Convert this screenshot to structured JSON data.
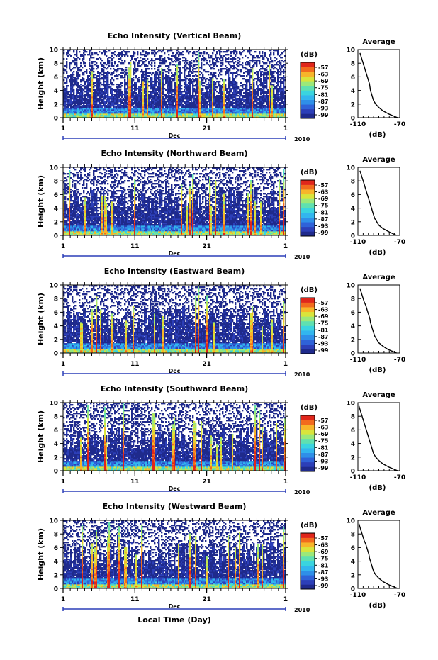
{
  "figure": {
    "xlabel": "Local Time (Day)",
    "year_label": "2010",
    "month_label": "Dec",
    "ylabel": "Height (km)",
    "colorbar_unit": "(dB)",
    "colorbar_ticks": [
      "-57",
      "-63",
      "-69",
      "-75",
      "-81",
      "-87",
      "-93",
      "-99"
    ],
    "avg_title": "Average",
    "avg_xlabel": "(dB)"
  },
  "colors": {
    "colormap": [
      "#1f2a8c",
      "#2c3fb8",
      "#2f62d8",
      "#2f8fe8",
      "#32b6ee",
      "#3ad4df",
      "#5fe0b0",
      "#9be87a",
      "#d9e43c",
      "#f7b52a",
      "#f26a1d",
      "#e0261b"
    ],
    "axis": "#000000",
    "frame_blue": "#2c3fb8"
  },
  "chart_data": [
    {
      "type": "heatmap",
      "title": "Echo Intensity (Vertical Beam)",
      "x_range_days": [
        1,
        32
      ],
      "x_ticks": [
        "1",
        "11",
        "21",
        "1"
      ],
      "ylim_km": [
        0,
        10
      ],
      "y_ticks": [
        "0",
        "2",
        "4",
        "6",
        "8",
        "10"
      ],
      "colorbar_range_db": [
        -99,
        -57
      ],
      "average": {
        "title": "Average",
        "xlim_db": [
          -110,
          -70
        ],
        "x_ticks": [
          "-110",
          "-70"
        ],
        "ylim_km": [
          0,
          10
        ],
        "y_ticks": [
          "0",
          "2",
          "4",
          "6",
          "8",
          "10"
        ],
        "height_km": [
          0,
          0.5,
          1,
          1.5,
          2,
          2.5,
          3,
          3.5,
          4,
          4.5,
          5,
          5.5,
          6,
          6.5,
          7,
          7.5,
          8,
          8.5,
          9,
          9.5
        ],
        "db": [
          -72,
          -80,
          -86,
          -90,
          -93,
          -95,
          -96,
          -97,
          -98,
          -98.5,
          -99,
          -100,
          -101,
          -102,
          -103,
          -104,
          -105,
          -106,
          -107,
          -108
        ]
      }
    },
    {
      "type": "heatmap",
      "title": "Echo Intensity (Northward Beam)",
      "x_range_days": [
        1,
        32
      ],
      "x_ticks": [
        "1",
        "11",
        "21",
        "1"
      ],
      "ylim_km": [
        0,
        10
      ],
      "y_ticks": [
        "0",
        "2",
        "4",
        "6",
        "8",
        "10"
      ],
      "colorbar_range_db": [
        -99,
        -57
      ],
      "average": {
        "title": "Average",
        "xlim_db": [
          -110,
          -70
        ],
        "x_ticks": [
          "-110",
          "-70"
        ],
        "ylim_km": [
          0,
          10
        ],
        "y_ticks": [
          "0",
          "2",
          "4",
          "6",
          "8",
          "10"
        ],
        "height_km": [
          0,
          0.5,
          1,
          1.5,
          2,
          2.5,
          3,
          3.5,
          4,
          4.5,
          5,
          5.5,
          6,
          6.5,
          7,
          7.5,
          8,
          8.5,
          9,
          9.5
        ],
        "db": [
          -73,
          -80,
          -86,
          -90,
          -92,
          -94,
          -95,
          -96,
          -97,
          -98,
          -99,
          -100,
          -101,
          -102,
          -103,
          -104,
          -105,
          -106,
          -107,
          -108
        ]
      }
    },
    {
      "type": "heatmap",
      "title": "Echo Intensity (Eastward Beam)",
      "x_range_days": [
        1,
        32
      ],
      "x_ticks": [
        "1",
        "11",
        "21",
        "1"
      ],
      "ylim_km": [
        0,
        10
      ],
      "y_ticks": [
        "0",
        "2",
        "4",
        "6",
        "8",
        "10"
      ],
      "colorbar_range_db": [
        -99,
        -57
      ],
      "average": {
        "title": "Average",
        "xlim_db": [
          -110,
          -70
        ],
        "x_ticks": [
          "-110",
          "-70"
        ],
        "ylim_km": [
          0,
          10
        ],
        "y_ticks": [
          "0",
          "2",
          "4",
          "6",
          "8",
          "10"
        ],
        "height_km": [
          0,
          0.5,
          1,
          1.5,
          2,
          2.5,
          3,
          3.5,
          4,
          4.5,
          5,
          5.5,
          6,
          6.5,
          7,
          7.5,
          8,
          8.5,
          9,
          9.5
        ],
        "db": [
          -73,
          -81,
          -86,
          -90,
          -92,
          -94,
          -95,
          -96,
          -97,
          -98,
          -98.5,
          -99.5,
          -100.5,
          -101.5,
          -102.5,
          -104,
          -105,
          -106,
          -107,
          -108
        ]
      }
    },
    {
      "type": "heatmap",
      "title": "Echo Intensity (Southward Beam)",
      "x_range_days": [
        1,
        32
      ],
      "x_ticks": [
        "1",
        "11",
        "21",
        "1"
      ],
      "ylim_km": [
        0,
        10
      ],
      "y_ticks": [
        "0",
        "2",
        "4",
        "6",
        "8",
        "10"
      ],
      "colorbar_range_db": [
        -99,
        -57
      ],
      "average": {
        "title": "Average",
        "xlim_db": [
          -110,
          -70
        ],
        "x_ticks": [
          "-110",
          "-70"
        ],
        "ylim_km": [
          0,
          10
        ],
        "y_ticks": [
          "0",
          "2",
          "4",
          "6",
          "8",
          "10"
        ],
        "height_km": [
          0,
          0.5,
          1,
          1.5,
          2,
          2.5,
          3,
          3.5,
          4,
          4.5,
          5,
          5.5,
          6,
          6.5,
          7,
          7.5,
          8,
          8.5,
          9,
          9.5
        ],
        "db": [
          -72,
          -80,
          -86,
          -90,
          -93,
          -95,
          -96,
          -97,
          -98,
          -99,
          -100,
          -101,
          -102,
          -103,
          -104,
          -105,
          -106,
          -107,
          -108,
          -109
        ]
      }
    },
    {
      "type": "heatmap",
      "title": "Echo Intensity (Westward Beam)",
      "x_range_days": [
        1,
        32
      ],
      "x_ticks": [
        "1",
        "11",
        "21",
        "1"
      ],
      "ylim_km": [
        0,
        10
      ],
      "y_ticks": [
        "0",
        "2",
        "4",
        "6",
        "8",
        "10"
      ],
      "colorbar_range_db": [
        -99,
        -57
      ],
      "average": {
        "title": "Average",
        "xlim_db": [
          -110,
          -70
        ],
        "x_ticks": [
          "-110",
          "-70"
        ],
        "ylim_km": [
          0,
          10
        ],
        "y_ticks": [
          "0",
          "2",
          "4",
          "6",
          "8",
          "10"
        ],
        "height_km": [
          0,
          0.5,
          1,
          1.5,
          2,
          2.5,
          3,
          3.5,
          4,
          4.5,
          5,
          5.5,
          6,
          6.5,
          7,
          7.5,
          8,
          8.5,
          9,
          9.5
        ],
        "db": [
          -72,
          -80,
          -86,
          -90,
          -93,
          -95,
          -96,
          -97,
          -98,
          -99,
          -99.5,
          -100.5,
          -101.5,
          -102.5,
          -104,
          -105,
          -106,
          -107,
          -108,
          -109
        ]
      }
    }
  ]
}
